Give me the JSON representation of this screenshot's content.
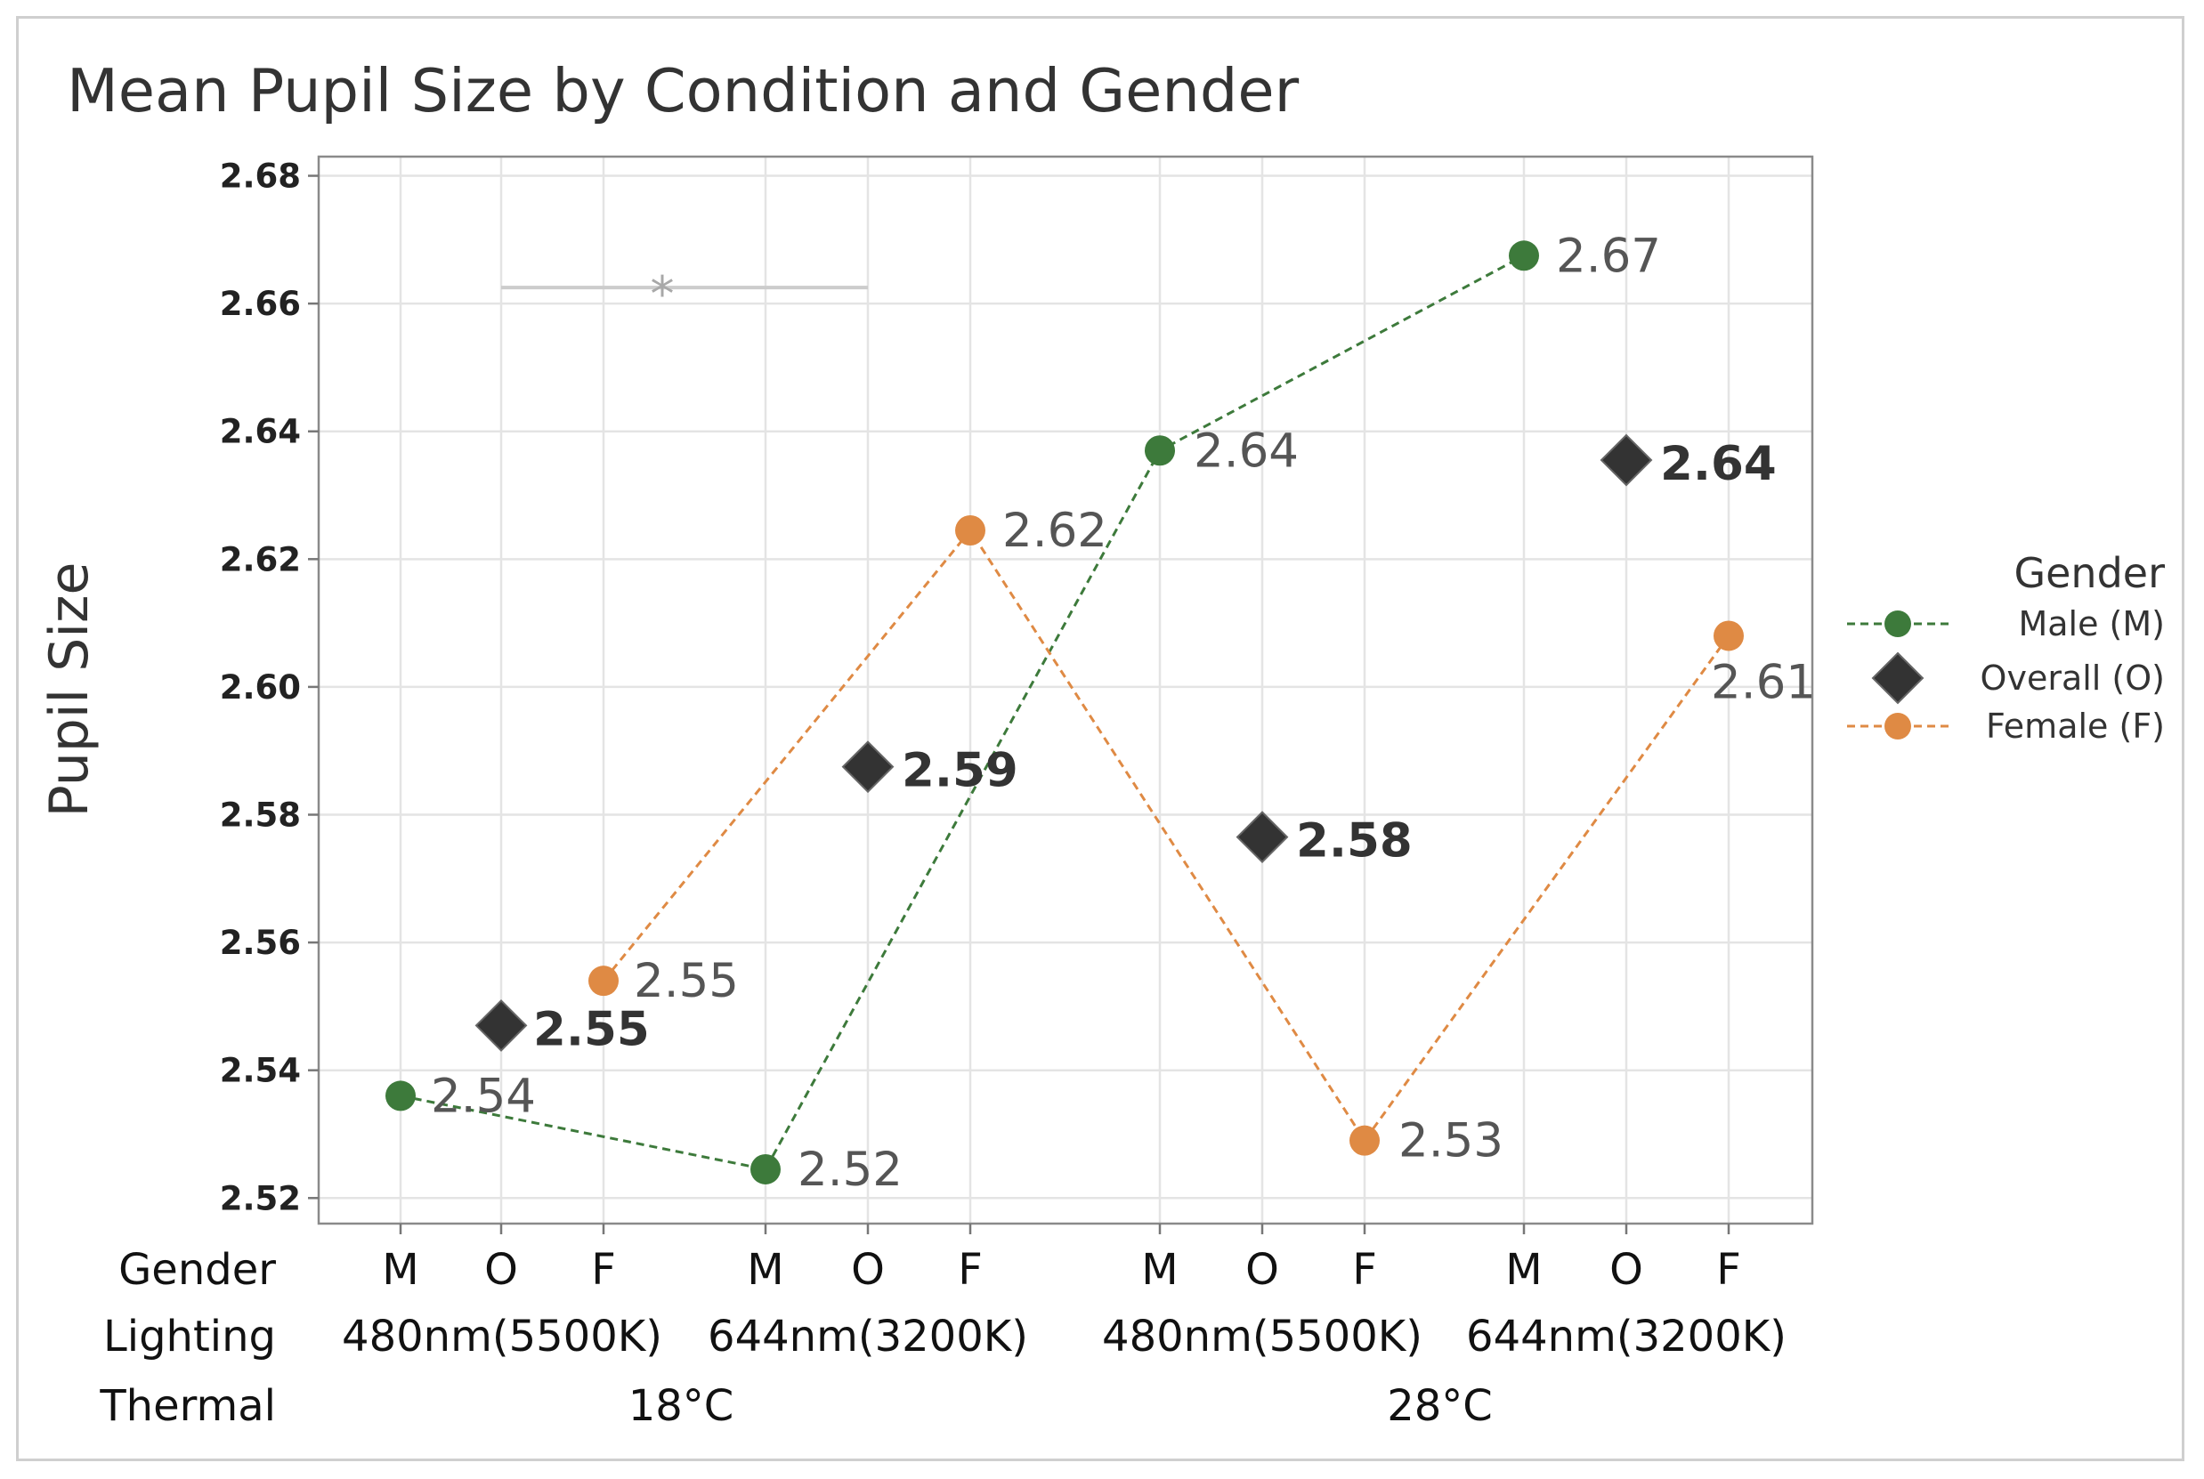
{
  "chart_data": {
    "type": "line",
    "title": "Mean Pupil Size by Condition and Gender",
    "ylabel": "Pupil Size",
    "ylim": [
      2.516,
      2.683
    ],
    "yticks": [
      2.52,
      2.54,
      2.56,
      2.58,
      2.6,
      2.62,
      2.64,
      2.66,
      2.68
    ],
    "ytick_labels": [
      "2.52",
      "2.54",
      "2.56",
      "2.58",
      "2.60",
      "2.62",
      "2.64",
      "2.66",
      "2.68"
    ],
    "grid": true,
    "row_labels": {
      "gender": "Gender",
      "lighting": "Lighting",
      "thermal": "Thermal"
    },
    "gender_ticks": [
      "M",
      "O",
      "F",
      "M",
      "O",
      "F",
      "M",
      "O",
      "F",
      "M",
      "O",
      "F"
    ],
    "lighting_groups": [
      "480nm(5500K)",
      "644nm(3200K)",
      "480nm(5500K)",
      "644nm(3200K)"
    ],
    "thermal_groups": [
      "18°C",
      "28°C"
    ],
    "series": [
      {
        "name": "Male (M)",
        "gender": "M",
        "color": "#3d7a3b",
        "marker": "circle",
        "connected": true,
        "values": [
          2.536,
          2.5245,
          2.637,
          2.6675
        ],
        "labels": [
          "2.54",
          "2.52",
          "2.64",
          "2.67"
        ]
      },
      {
        "name": "Overall (O)",
        "gender": "O",
        "color": "#333333",
        "marker": "diamond",
        "connected": false,
        "values": [
          2.547,
          2.5875,
          2.5765,
          2.6355
        ],
        "labels": [
          "2.55",
          "2.59",
          "2.58",
          "2.64"
        ]
      },
      {
        "name": "Female (F)",
        "gender": "F",
        "color": "#df8a44",
        "marker": "circle",
        "connected": true,
        "values": [
          2.554,
          2.6245,
          2.529,
          2.608
        ],
        "labels": [
          "2.55",
          "2.62",
          "2.53",
          "2.61"
        ]
      }
    ],
    "legend": {
      "title": "Gender",
      "position": "right"
    },
    "annotation": {
      "text": "*",
      "y": 2.6625,
      "from_group": 0,
      "to_group": 1
    }
  }
}
